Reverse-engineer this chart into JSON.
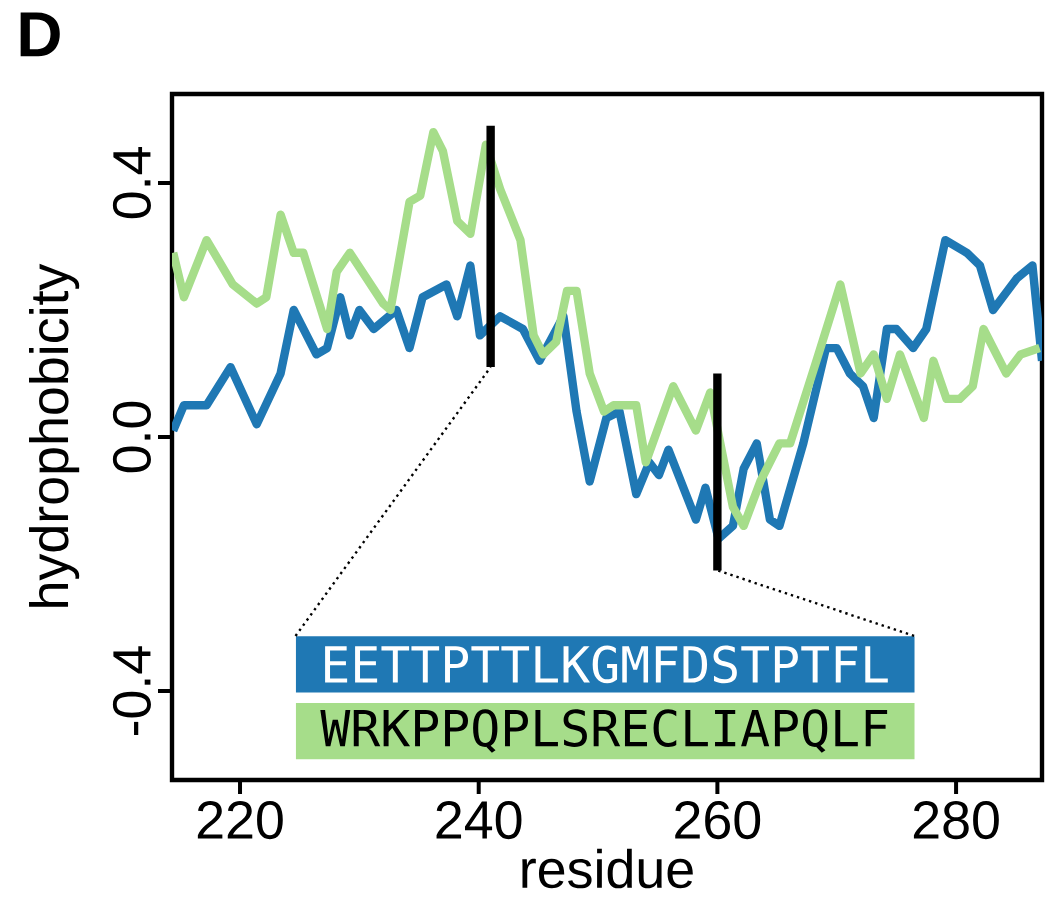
{
  "chart_data": {
    "type": "line",
    "title": "D",
    "xlabel": "residue",
    "ylabel": "hydrophobicity",
    "xlim": [
      214.3,
      287.2
    ],
    "ylim": [
      -0.54,
      0.54
    ],
    "xticks": [
      220,
      240,
      260,
      280
    ],
    "yticks": [
      {
        "value": -0.4,
        "label": "-0.4"
      },
      {
        "value": 0.0,
        "label": "0.0"
      },
      {
        "value": 0.4,
        "label": "0.4"
      }
    ],
    "grid": false,
    "line_style": "solid",
    "marker": "none",
    "ref_lines": [
      {
        "axis": "x",
        "value": 241,
        "color": "#000000"
      },
      {
        "axis": "x",
        "value": 260,
        "color": "#000000"
      }
    ],
    "annotations": [
      {
        "text": "EETTPTTLKGMFDSTPTFL",
        "x": 241,
        "y": 0.11
      },
      {
        "text": "WRKPPQPLSRECLIAPQLF",
        "x": 260,
        "y": -0.21
      }
    ],
    "series": [
      {
        "color": "#1f78b4",
        "x": [
          214.4,
          215.3,
          217.2,
          219.2,
          221.4,
          223.4,
          224.5,
          226.4,
          227.3,
          228.4,
          229.2,
          230.0,
          231.2,
          233.1,
          234.2,
          235.3,
          237.3,
          238.2,
          239.3,
          240.1,
          241.8,
          243.7,
          245.1,
          247.1,
          248.2,
          249.3,
          250.7,
          251.8,
          253.2,
          254.3,
          255.1,
          255.9,
          258.2,
          259.0,
          260.1,
          261.3,
          262.2,
          263.3,
          264.4,
          265.2,
          267.2,
          269.1,
          270.0,
          271.1,
          272.2,
          273.1,
          274.2,
          275.0,
          276.4,
          277.5,
          279.1,
          280.9,
          282.0,
          283.1,
          285.1,
          286.4,
          287.2
        ],
        "values": [
          0.01,
          0.05,
          0.05,
          0.11,
          0.02,
          0.1,
          0.2,
          0.13,
          0.14,
          0.22,
          0.16,
          0.2,
          0.17,
          0.2,
          0.14,
          0.22,
          0.24,
          0.19,
          0.27,
          0.16,
          0.19,
          0.17,
          0.12,
          0.19,
          0.04,
          -0.07,
          0.03,
          0.04,
          -0.09,
          -0.04,
          -0.06,
          -0.02,
          -0.13,
          -0.08,
          -0.16,
          -0.14,
          -0.05,
          -0.01,
          -0.13,
          -0.14,
          -0.01,
          0.14,
          0.14,
          0.1,
          0.08,
          0.03,
          0.17,
          0.17,
          0.14,
          0.17,
          0.31,
          0.29,
          0.27,
          0.2,
          0.25,
          0.27,
          0.12
        ]
      },
      {
        "color": "#a6dd8a",
        "x": [
          214.4,
          215.3,
          217.2,
          219.4,
          221.4,
          222.2,
          223.4,
          224.5,
          225.3,
          227.3,
          228.1,
          229.2,
          232.0,
          232.6,
          234.2,
          235.1,
          236.2,
          237.0,
          238.2,
          239.3,
          240.6,
          241.8,
          243.5,
          244.6,
          245.4,
          246.5,
          247.4,
          248.2,
          249.3,
          250.5,
          251.3,
          253.2,
          254.0,
          256.3,
          258.2,
          259.4,
          261.3,
          262.2,
          263.6,
          265.2,
          266.1,
          268.3,
          270.3,
          272.0,
          273.1,
          274.2,
          275.3,
          277.3,
          278.1,
          279.2,
          280.3,
          281.4,
          282.3,
          284.2,
          285.4,
          287.0
        ],
        "values": [
          0.29,
          0.22,
          0.31,
          0.24,
          0.21,
          0.22,
          0.35,
          0.29,
          0.29,
          0.17,
          0.26,
          0.29,
          0.21,
          0.2,
          0.37,
          0.38,
          0.48,
          0.45,
          0.34,
          0.32,
          0.46,
          0.39,
          0.31,
          0.16,
          0.13,
          0.15,
          0.23,
          0.23,
          0.1,
          0.04,
          0.05,
          0.05,
          -0.04,
          0.08,
          0.01,
          0.07,
          -0.11,
          -0.14,
          -0.07,
          -0.01,
          -0.01,
          0.12,
          0.24,
          0.1,
          0.13,
          0.06,
          0.13,
          0.03,
          0.12,
          0.06,
          0.06,
          0.08,
          0.17,
          0.1,
          0.13,
          0.14
        ]
      }
    ]
  }
}
